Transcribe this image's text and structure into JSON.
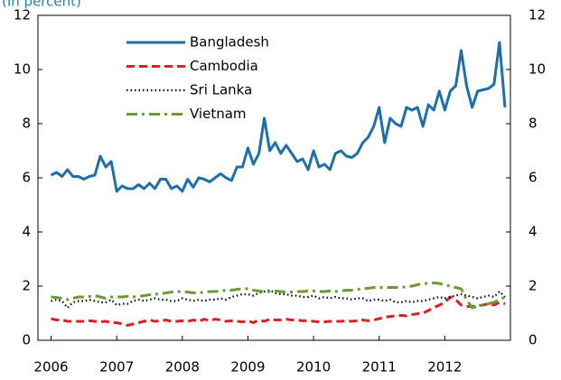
{
  "chart_data": {
    "type": "line",
    "title": "(In percent)",
    "legend": "upper center",
    "x": [
      2006,
      2006.083,
      2006.167,
      2006.25,
      2006.333,
      2006.417,
      2006.5,
      2006.583,
      2006.667,
      2006.75,
      2006.833,
      2006.917,
      2007,
      2007.083,
      2007.167,
      2007.25,
      2007.333,
      2007.417,
      2007.5,
      2007.583,
      2007.667,
      2007.75,
      2007.833,
      2007.917,
      2008,
      2008.083,
      2008.167,
      2008.25,
      2008.333,
      2008.417,
      2008.5,
      2008.583,
      2008.667,
      2008.75,
      2008.833,
      2008.917,
      2009,
      2009.083,
      2009.167,
      2009.25,
      2009.333,
      2009.417,
      2009.5,
      2009.583,
      2009.667,
      2009.75,
      2009.833,
      2009.917,
      2010,
      2010.083,
      2010.167,
      2010.25,
      2010.333,
      2010.417,
      2010.5,
      2010.583,
      2010.667,
      2010.75,
      2010.833,
      2010.917,
      2011,
      2011.083,
      2011.167,
      2011.25,
      2011.333,
      2011.417,
      2011.5,
      2011.583,
      2011.667,
      2011.75,
      2011.833,
      2011.917,
      2012,
      2012.083,
      2012.167,
      2012.25,
      2012.333,
      2012.417,
      2012.5,
      2012.583,
      2012.667,
      2012.75,
      2012.833,
      2012.917
    ],
    "xlim": [
      2005.8,
      2013.0
    ],
    "xticks": [
      2006,
      2007,
      2008,
      2009,
      2010,
      2011,
      2012
    ],
    "ylim": [
      0,
      12
    ],
    "yticks": [
      0,
      2,
      4,
      6,
      8,
      10,
      12
    ],
    "y2lim": [
      0,
      12
    ],
    "y2ticks": [
      0,
      2,
      4,
      6,
      8,
      10,
      12
    ],
    "series": [
      {
        "name": "Bangladesh",
        "color": "#1f6ea6",
        "style": "solid",
        "values": [
          6.1,
          6.2,
          6.05,
          6.3,
          6.05,
          6.05,
          5.95,
          6.05,
          6.1,
          6.8,
          6.4,
          6.6,
          5.5,
          5.7,
          5.6,
          5.6,
          5.75,
          5.6,
          5.8,
          5.6,
          5.95,
          5.95,
          5.6,
          5.7,
          5.5,
          5.95,
          5.65,
          6.0,
          5.95,
          5.85,
          6.0,
          6.15,
          6.0,
          5.9,
          6.4,
          6.4,
          7.1,
          6.5,
          6.9,
          8.2,
          7.0,
          7.3,
          6.9,
          7.2,
          6.9,
          6.6,
          6.7,
          6.3,
          7.0,
          6.4,
          6.5,
          6.3,
          6.9,
          7.0,
          6.8,
          6.75,
          6.9,
          7.3,
          7.5,
          7.9,
          8.6,
          7.3,
          8.2,
          8.0,
          7.9,
          8.6,
          8.5,
          8.6,
          7.9,
          8.7,
          8.5,
          9.2,
          8.5,
          9.2,
          9.4,
          10.7,
          9.4,
          8.6,
          9.2,
          9.25,
          9.3,
          9.45,
          11.0,
          8.6
        ]
      },
      {
        "name": "Cambodia",
        "color": "#e02020",
        "style": "dashed",
        "values": [
          0.8,
          0.75,
          0.75,
          0.7,
          0.7,
          0.7,
          0.7,
          0.72,
          0.7,
          0.68,
          0.7,
          0.65,
          0.65,
          0.6,
          0.55,
          0.6,
          0.65,
          0.7,
          0.75,
          0.7,
          0.72,
          0.75,
          0.7,
          0.7,
          0.72,
          0.7,
          0.75,
          0.7,
          0.78,
          0.72,
          0.78,
          0.75,
          0.7,
          0.72,
          0.7,
          0.68,
          0.72,
          0.65,
          0.75,
          0.7,
          0.78,
          0.75,
          0.75,
          0.78,
          0.75,
          0.75,
          0.72,
          0.72,
          0.7,
          0.68,
          0.68,
          0.7,
          0.7,
          0.7,
          0.72,
          0.7,
          0.72,
          0.75,
          0.72,
          0.75,
          0.8,
          0.85,
          0.88,
          0.9,
          0.92,
          0.9,
          0.95,
          0.98,
          1.0,
          1.1,
          1.2,
          1.3,
          1.4,
          1.6,
          1.5,
          1.3,
          1.25,
          1.25,
          1.28,
          1.3,
          1.35,
          1.3,
          1.4,
          1.35
        ]
      },
      {
        "name": "Sri Lanka",
        "color": "#000000",
        "style": "dotted",
        "values": [
          1.45,
          1.5,
          1.45,
          1.2,
          1.4,
          1.45,
          1.45,
          1.5,
          1.45,
          1.4,
          1.4,
          1.5,
          1.3,
          1.35,
          1.35,
          1.45,
          1.5,
          1.45,
          1.5,
          1.55,
          1.5,
          1.5,
          1.45,
          1.45,
          1.55,
          1.5,
          1.45,
          1.5,
          1.45,
          1.5,
          1.5,
          1.55,
          1.5,
          1.6,
          1.65,
          1.7,
          1.7,
          1.65,
          1.75,
          1.8,
          1.85,
          1.75,
          1.7,
          1.7,
          1.65,
          1.65,
          1.6,
          1.6,
          1.65,
          1.55,
          1.6,
          1.55,
          1.6,
          1.55,
          1.55,
          1.5,
          1.55,
          1.55,
          1.45,
          1.5,
          1.5,
          1.45,
          1.5,
          1.4,
          1.4,
          1.45,
          1.4,
          1.45,
          1.45,
          1.5,
          1.55,
          1.6,
          1.55,
          1.6,
          1.65,
          1.7,
          1.65,
          1.6,
          1.55,
          1.6,
          1.65,
          1.6,
          1.8,
          1.6
        ]
      },
      {
        "name": "Vietnam",
        "color": "#6b9a35",
        "style": "dashdot",
        "values": [
          1.6,
          1.58,
          1.55,
          1.5,
          1.55,
          1.6,
          1.6,
          1.62,
          1.65,
          1.6,
          1.55,
          1.6,
          1.6,
          1.6,
          1.62,
          1.6,
          1.62,
          1.65,
          1.68,
          1.7,
          1.72,
          1.75,
          1.78,
          1.8,
          1.8,
          1.78,
          1.75,
          1.75,
          1.78,
          1.8,
          1.8,
          1.82,
          1.85,
          1.85,
          1.88,
          1.9,
          1.9,
          1.85,
          1.82,
          1.8,
          1.8,
          1.82,
          1.8,
          1.78,
          1.78,
          1.8,
          1.8,
          1.82,
          1.82,
          1.8,
          1.8,
          1.82,
          1.8,
          1.82,
          1.85,
          1.85,
          1.88,
          1.9,
          1.92,
          1.95,
          1.95,
          1.95,
          1.95,
          1.95,
          1.95,
          1.98,
          2.0,
          2.05,
          2.1,
          2.1,
          2.12,
          2.1,
          2.05,
          2.0,
          1.95,
          1.9,
          1.5,
          1.2,
          1.25,
          1.3,
          1.35,
          1.4,
          1.5,
          1.6
        ]
      }
    ]
  }
}
